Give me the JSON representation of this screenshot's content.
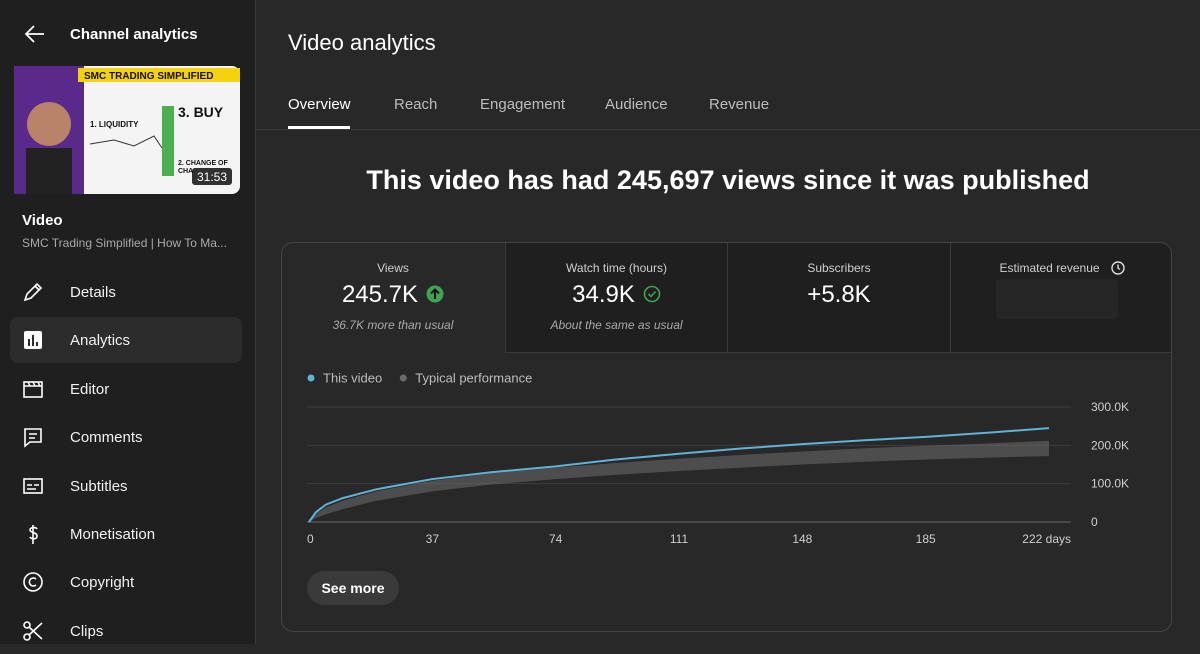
{
  "sidebar": {
    "back_title": "Channel analytics",
    "thumbnail": {
      "banner": "SMC TRADING SIMPLIFIED",
      "step3": "3. BUY",
      "step1": "1. LIQUIDITY",
      "step2": "2. CHANGE OF",
      "step2b": "CHA",
      "duration": "31:53"
    },
    "video_label": "Video",
    "video_title": "SMC Trading Simplified | How To Ma...",
    "items": [
      "Details",
      "Analytics",
      "Editor",
      "Comments",
      "Subtitles",
      "Monetisation",
      "Copyright",
      "Clips"
    ],
    "active": "Analytics"
  },
  "header": {
    "title": "Video analytics"
  },
  "tabs": {
    "items": [
      "Overview",
      "Reach",
      "Engagement",
      "Audience",
      "Revenue"
    ],
    "active": "Overview"
  },
  "headline": "This video has had 245,697 views since it was published",
  "metrics": [
    {
      "label": "Views",
      "value": "245.7K",
      "note": "36.7K more than usual"
    },
    {
      "label": "Watch time (hours)",
      "value": "34.9K",
      "note": "About the same as usual"
    },
    {
      "label": "Subscribers",
      "value": "+5.8K"
    },
    {
      "label": "Estimated revenue"
    }
  ],
  "button": "See more",
  "chart_data": {
    "type": "line",
    "x": [
      0,
      2,
      5,
      10,
      20,
      37,
      55,
      74,
      92,
      111,
      130,
      148,
      166,
      185,
      204,
      222
    ],
    "series": [
      {
        "name": "This video",
        "color": "#5fb3d6",
        "values": [
          0,
          25000,
          45000,
          62000,
          85000,
          112000,
          130000,
          145000,
          163000,
          178000,
          192000,
          203000,
          213000,
          222000,
          233000,
          245000
        ]
      }
    ],
    "band": {
      "name": "Typical performance",
      "color": "#6b6b6b",
      "upper": [
        0,
        20000,
        38000,
        55000,
        80000,
        108000,
        127000,
        142000,
        154000,
        165000,
        175000,
        184000,
        192000,
        199000,
        205000,
        212000
      ],
      "lower": [
        0,
        10000,
        20000,
        33000,
        55000,
        80000,
        98000,
        112000,
        123000,
        133000,
        142000,
        150000,
        157000,
        163000,
        168000,
        172000
      ]
    },
    "xlim": [
      0,
      222
    ],
    "xticks": [
      0,
      37,
      74,
      111,
      148,
      185,
      {
        "value": 222,
        "label": "222 days"
      }
    ],
    "ylim": [
      0,
      300000
    ],
    "yticks": [
      0,
      {
        "value": 100000,
        "label": "100.0K"
      },
      {
        "value": 200000,
        "label": "200.0K"
      },
      {
        "value": 300000,
        "label": "300.0K"
      }
    ],
    "grid": true,
    "legend": "top-left"
  }
}
